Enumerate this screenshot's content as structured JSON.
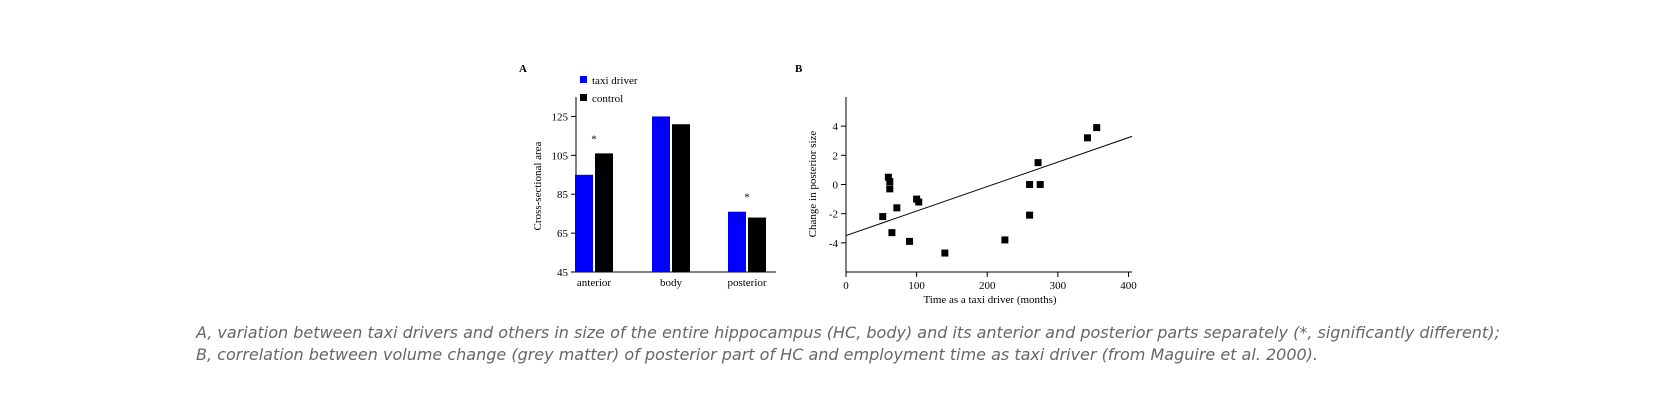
{
  "panels": [
    {
      "label": "A"
    },
    {
      "label": "B"
    }
  ],
  "caption": {
    "line1": "A, variation between taxi drivers and others in size of the entire hippocampus (HC, body) and its anterior and posterior parts separately (*, significantly different);",
    "line2": "B, correlation between volume change (grey matter) of posterior part of HC and employment time as taxi driver (from Maguire et al. 2000)."
  },
  "chart_data": [
    {
      "type": "bar",
      "title": "",
      "xlabel": "",
      "ylabel": "Cross-sectional area",
      "categories": [
        "anterior",
        "body",
        "posterior"
      ],
      "series": [
        {
          "name": "taxi driver",
          "color": "#0000ff",
          "values": [
            95,
            125,
            76
          ]
        },
        {
          "name": "control",
          "color": "#000000",
          "values": [
            106,
            121,
            73
          ]
        }
      ],
      "annotations": [
        {
          "category": "anterior",
          "text": "*"
        },
        {
          "category": "posterior",
          "text": "*"
        }
      ],
      "ylim": [
        45,
        135
      ],
      "yticks": [
        45,
        65,
        85,
        105,
        125
      ],
      "grid": false,
      "legend": "top-left"
    },
    {
      "type": "scatter",
      "title": "",
      "xlabel": "Time as a taxi driver (months)",
      "ylabel": "Change in posterior size",
      "xlim": [
        0,
        405
      ],
      "ylim": [
        -6,
        6
      ],
      "xticks": [
        0,
        100,
        200,
        300,
        400
      ],
      "yticks": [
        -4,
        -2,
        0,
        2,
        4
      ],
      "grid": false,
      "points": [
        {
          "x": 52,
          "y": -2.2
        },
        {
          "x": 60,
          "y": 0.5
        },
        {
          "x": 62,
          "y": 0.2
        },
        {
          "x": 62,
          "y": -0.3
        },
        {
          "x": 65,
          "y": -3.3
        },
        {
          "x": 72,
          "y": -1.6
        },
        {
          "x": 90,
          "y": -3.9
        },
        {
          "x": 100,
          "y": -1.0
        },
        {
          "x": 103,
          "y": -1.2
        },
        {
          "x": 140,
          "y": -4.7
        },
        {
          "x": 225,
          "y": -3.8
        },
        {
          "x": 260,
          "y": 0.0
        },
        {
          "x": 260,
          "y": -2.1
        },
        {
          "x": 272,
          "y": 1.5
        },
        {
          "x": 275,
          "y": 0.0
        },
        {
          "x": 342,
          "y": 3.2
        },
        {
          "x": 355,
          "y": 3.9
        }
      ],
      "trendline": {
        "x": [
          0,
          405
        ],
        "y": [
          -3.5,
          3.3
        ]
      }
    }
  ]
}
